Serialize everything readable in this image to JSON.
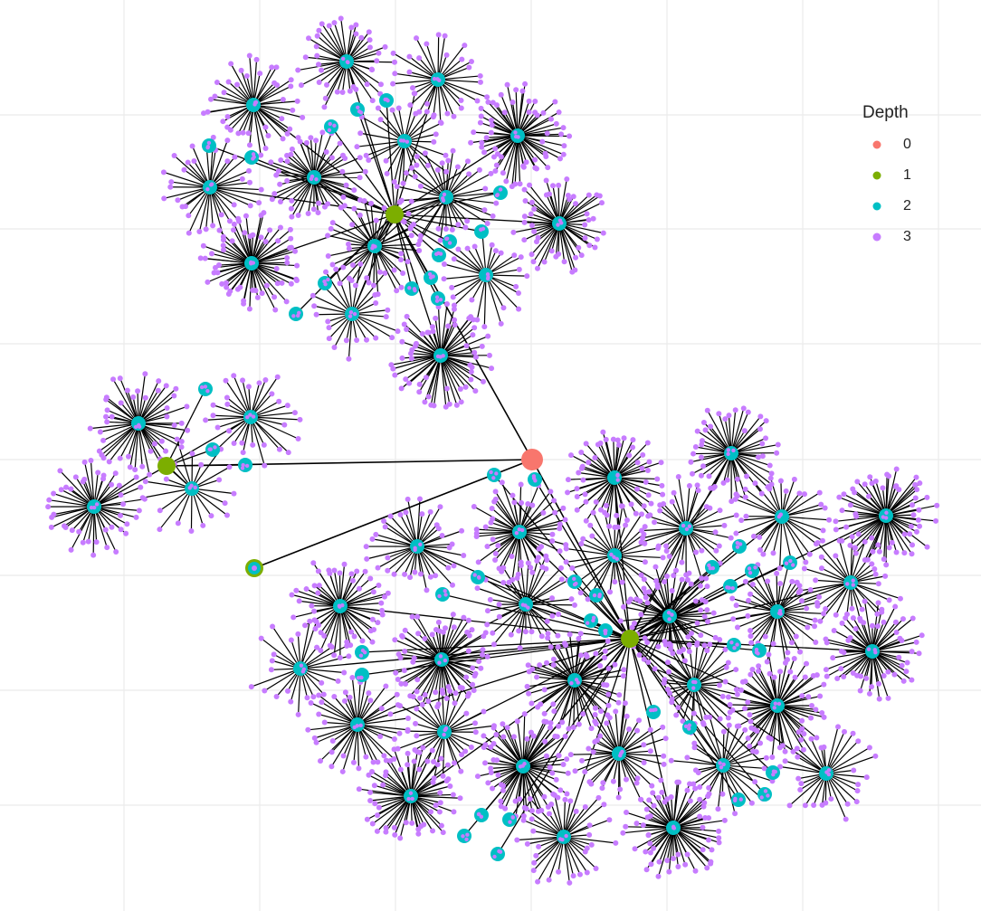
{
  "legend": {
    "title": "Depth",
    "items": [
      {
        "label": "0",
        "color": "#f8766d"
      },
      {
        "label": "1",
        "color": "#7cae00"
      },
      {
        "label": "2",
        "color": "#00bfc4"
      },
      {
        "label": "3",
        "color": "#c77cff"
      }
    ]
  }
}
